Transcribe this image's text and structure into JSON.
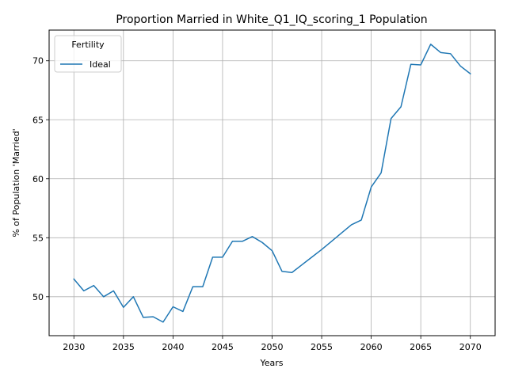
{
  "chart_data": {
    "type": "line",
    "title": "Proportion Married in White_Q1_IQ_scoring_1 Population",
    "xlabel": "Years",
    "ylabel": "% of Population 'Married'",
    "xlim": [
      2027.5,
      2072.5
    ],
    "ylim": [
      46.7,
      72.6
    ],
    "xticks": [
      2030,
      2035,
      2040,
      2045,
      2050,
      2055,
      2060,
      2065,
      2070
    ],
    "yticks": [
      50,
      55,
      60,
      65,
      70
    ],
    "grid": true,
    "legend": {
      "title": "Fertility",
      "placement": "top-left"
    },
    "series": [
      {
        "name": "Ideal",
        "color": "#1f77b4",
        "x": [
          2030,
          2031,
          2032,
          2033,
          2034,
          2035,
          2036,
          2037,
          2038,
          2039,
          2040,
          2041,
          2042,
          2043,
          2044,
          2045,
          2046,
          2047,
          2048,
          2049,
          2050,
          2051,
          2052,
          2053,
          2054,
          2055,
          2056,
          2057,
          2058,
          2059,
          2060,
          2061,
          2062,
          2063,
          2064,
          2065,
          2066,
          2067,
          2068,
          2069,
          2070
        ],
        "values": [
          51.5,
          50.5,
          50.95,
          50.0,
          50.5,
          49.1,
          50.0,
          48.25,
          48.3,
          47.85,
          49.15,
          48.75,
          50.85,
          50.85,
          53.35,
          53.35,
          54.7,
          54.7,
          55.1,
          54.6,
          53.9,
          52.15,
          52.05,
          52.7,
          53.35,
          54.0,
          54.7,
          55.4,
          56.1,
          56.5,
          59.3,
          60.5,
          65.1,
          66.1,
          69.7,
          69.65,
          71.4,
          70.7,
          70.6,
          69.55,
          68.9
        ]
      }
    ]
  }
}
